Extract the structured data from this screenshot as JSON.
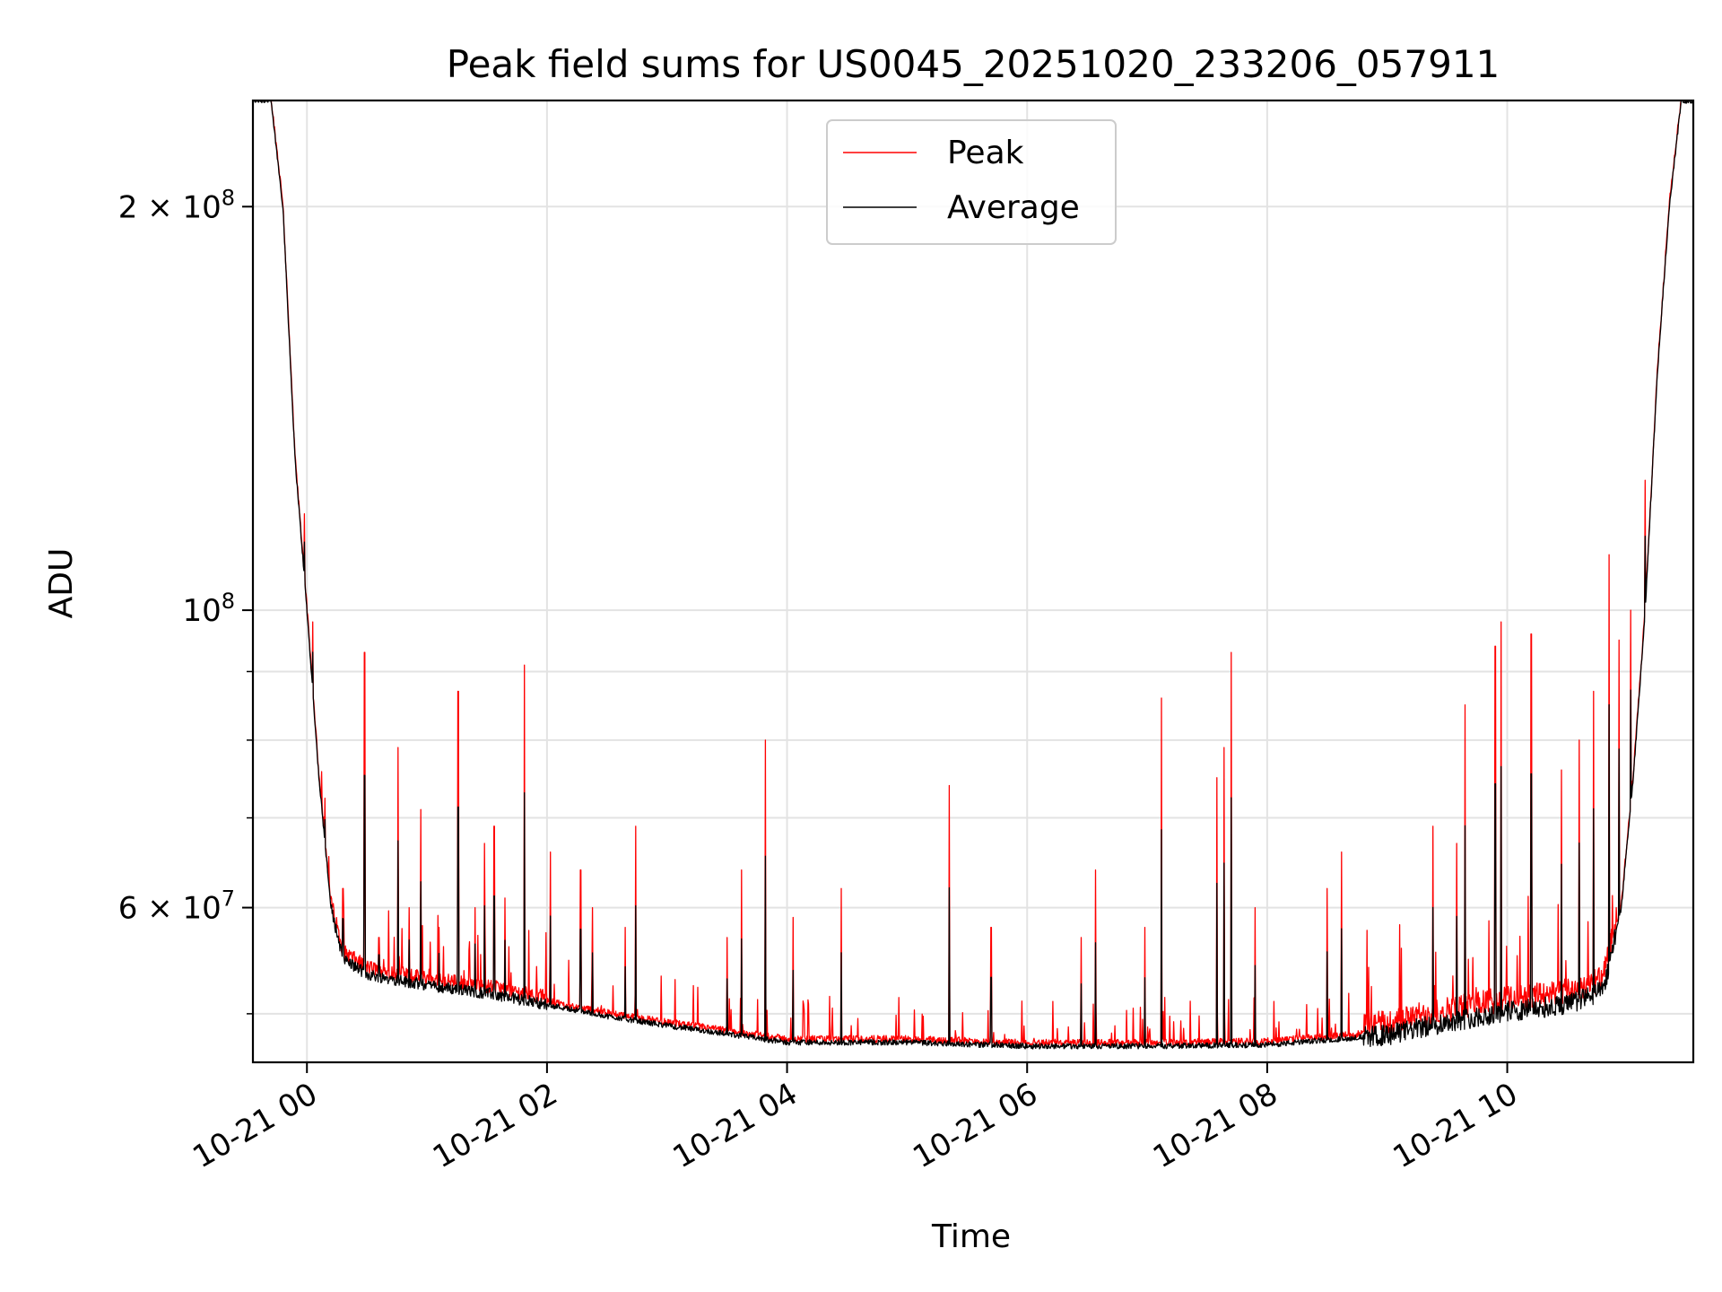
{
  "chart_data": {
    "type": "line",
    "title": "Peak field sums for US0045_20251020_233206_057911",
    "xlabel": "Time",
    "ylabel": "ADU",
    "yscale": "log",
    "ylim": [
      46000000,
      240000000
    ],
    "xlim_hours": [
      -0.45,
      11.55
    ],
    "grid": true,
    "legend_position": "upper center",
    "x_ticks": [
      {
        "hour": 0,
        "label": "10-21 00"
      },
      {
        "hour": 2,
        "label": "10-21 02"
      },
      {
        "hour": 4,
        "label": "10-21 04"
      },
      {
        "hour": 6,
        "label": "10-21 06"
      },
      {
        "hour": 8,
        "label": "10-21 08"
      },
      {
        "hour": 10,
        "label": "10-21 10"
      }
    ],
    "y_major_ticks": [
      {
        "value": 60000000,
        "base": "6 × 10",
        "exp": "7"
      },
      {
        "value": 100000000,
        "base": "10",
        "exp": "8"
      },
      {
        "value": 200000000,
        "base": "2 × 10",
        "exp": "8"
      }
    ],
    "y_minor_ticks": [
      50000000,
      70000000,
      80000000,
      90000000,
      300000000
    ],
    "baseline": [
      [
        -0.45,
        240000000
      ],
      [
        -0.3,
        240000000
      ],
      [
        -0.2,
        200000000
      ],
      [
        -0.1,
        130000000
      ],
      [
        0.0,
        100000000
      ],
      [
        0.1,
        75000000
      ],
      [
        0.2,
        60000000
      ],
      [
        0.3,
        55000000
      ],
      [
        0.5,
        53500000
      ],
      [
        1.0,
        52500000
      ],
      [
        1.5,
        51800000
      ],
      [
        2.0,
        50800000
      ],
      [
        2.5,
        49800000
      ],
      [
        3.0,
        49000000
      ],
      [
        3.5,
        48300000
      ],
      [
        4.0,
        47600000
      ],
      [
        5.0,
        47600000
      ],
      [
        6.0,
        47300000
      ],
      [
        7.0,
        47300000
      ],
      [
        8.0,
        47400000
      ],
      [
        9.0,
        48200000
      ],
      [
        9.5,
        49300000
      ],
      [
        10.0,
        50200000
      ],
      [
        10.5,
        50800000
      ],
      [
        10.8,
        52000000
      ],
      [
        10.95,
        60000000
      ],
      [
        11.05,
        75000000
      ],
      [
        11.15,
        100000000
      ],
      [
        11.25,
        150000000
      ],
      [
        11.35,
        200000000
      ],
      [
        11.45,
        240000000
      ],
      [
        11.55,
        240000000
      ]
    ],
    "series": [
      {
        "name": "Peak",
        "color": "#ff0000",
        "spikes": [
          [
            -0.02,
            118000000
          ],
          [
            0.05,
            98000000
          ],
          [
            0.15,
            72000000
          ],
          [
            0.3,
            62000000
          ],
          [
            0.48,
            93000000
          ],
          [
            0.6,
            57000000
          ],
          [
            0.76,
            79000000
          ],
          [
            0.85,
            60000000
          ],
          [
            0.95,
            71000000
          ],
          [
            1.1,
            58000000
          ],
          [
            1.26,
            87000000
          ],
          [
            1.4,
            60000000
          ],
          [
            1.48,
            67000000
          ],
          [
            1.56,
            69000000
          ],
          [
            1.65,
            61000000
          ],
          [
            1.81,
            91000000
          ],
          [
            2.03,
            66000000
          ],
          [
            2.28,
            64000000
          ],
          [
            2.38,
            60000000
          ],
          [
            2.65,
            58000000
          ],
          [
            2.74,
            69000000
          ],
          [
            3.5,
            57000000
          ],
          [
            3.62,
            64000000
          ],
          [
            3.82,
            80000000
          ],
          [
            4.05,
            59000000
          ],
          [
            4.45,
            62000000
          ],
          [
            5.35,
            74000000
          ],
          [
            5.7,
            58000000
          ],
          [
            6.45,
            57000000
          ],
          [
            6.57,
            64000000
          ],
          [
            6.98,
            58000000
          ],
          [
            7.12,
            86000000
          ],
          [
            7.58,
            75000000
          ],
          [
            7.64,
            79000000
          ],
          [
            7.7,
            93000000
          ],
          [
            7.9,
            60000000
          ],
          [
            8.5,
            62000000
          ],
          [
            8.62,
            66000000
          ],
          [
            9.38,
            69000000
          ],
          [
            9.58,
            67000000
          ],
          [
            9.65,
            85000000
          ],
          [
            9.9,
            94000000
          ],
          [
            9.95,
            98000000
          ],
          [
            10.2,
            96000000
          ],
          [
            10.45,
            76000000
          ],
          [
            10.6,
            80000000
          ],
          [
            10.72,
            87000000
          ],
          [
            10.85,
            110000000
          ],
          [
            10.93,
            95000000
          ],
          [
            11.03,
            100000000
          ],
          [
            11.15,
            125000000
          ],
          [
            11.3,
            165000000
          ]
        ]
      },
      {
        "name": "Average",
        "color": "#000000"
      }
    ]
  }
}
